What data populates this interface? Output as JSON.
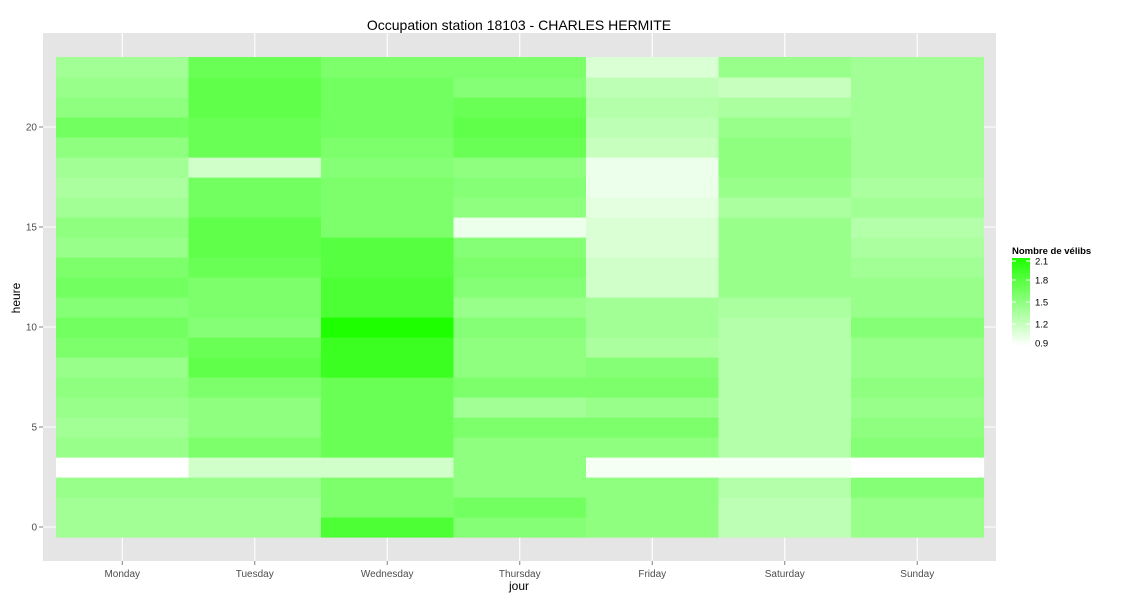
{
  "chart_data": {
    "type": "heatmap",
    "title": "Occupation station 18103 - CHARLES HERMITE",
    "xlabel": "jour",
    "ylabel": "heure",
    "categories": [
      "Monday",
      "Tuesday",
      "Wednesday",
      "Thursday",
      "Friday",
      "Saturday",
      "Sunday"
    ],
    "y": [
      0,
      1,
      2,
      3,
      4,
      5,
      6,
      7,
      8,
      9,
      10,
      11,
      12,
      13,
      14,
      15,
      16,
      17,
      18,
      19,
      20,
      21,
      22,
      23
    ],
    "y_ticks": [
      0,
      5,
      10,
      15,
      20
    ],
    "ylim": [
      -0.5,
      23.5
    ],
    "grid": true,
    "legend": {
      "title": "Nombre de vélibs",
      "position": "right",
      "min": 0.9,
      "max": 2.1,
      "breaks": [
        2.1,
        1.8,
        1.5,
        1.2,
        0.9
      ]
    },
    "colors": {
      "low": "#ffffff",
      "high": "#1eff00",
      "panel": "#e5e5e5",
      "grid": "#ffffff"
    },
    "values": [
      [
        1.4,
        1.4,
        1.85,
        1.55,
        1.5,
        1.25,
        1.45
      ],
      [
        1.4,
        1.4,
        1.6,
        1.65,
        1.5,
        1.25,
        1.45
      ],
      [
        1.45,
        1.45,
        1.6,
        1.5,
        1.5,
        1.3,
        1.55
      ],
      [
        0.9,
        1.15,
        1.15,
        1.5,
        0.95,
        0.95,
        0.9
      ],
      [
        1.45,
        1.6,
        1.7,
        1.5,
        1.5,
        1.3,
        1.55
      ],
      [
        1.4,
        1.5,
        1.7,
        1.6,
        1.6,
        1.3,
        1.5
      ],
      [
        1.45,
        1.5,
        1.7,
        1.4,
        1.45,
        1.3,
        1.45
      ],
      [
        1.5,
        1.6,
        1.7,
        1.6,
        1.6,
        1.3,
        1.5
      ],
      [
        1.45,
        1.75,
        1.95,
        1.5,
        1.55,
        1.3,
        1.45
      ],
      [
        1.6,
        1.7,
        1.95,
        1.5,
        1.35,
        1.3,
        1.45
      ],
      [
        1.65,
        1.55,
        2.1,
        1.55,
        1.4,
        1.3,
        1.55
      ],
      [
        1.55,
        1.6,
        1.85,
        1.45,
        1.4,
        1.35,
        1.45
      ],
      [
        1.65,
        1.6,
        1.85,
        1.55,
        1.15,
        1.45,
        1.45
      ],
      [
        1.6,
        1.7,
        1.8,
        1.6,
        1.15,
        1.45,
        1.4
      ],
      [
        1.45,
        1.75,
        1.8,
        1.55,
        1.1,
        1.45,
        1.35
      ],
      [
        1.5,
        1.75,
        1.6,
        1.0,
        1.1,
        1.45,
        1.3
      ],
      [
        1.4,
        1.65,
        1.6,
        1.5,
        1.05,
        1.35,
        1.4
      ],
      [
        1.35,
        1.65,
        1.6,
        1.55,
        1.0,
        1.45,
        1.35
      ],
      [
        1.4,
        1.15,
        1.55,
        1.5,
        1.0,
        1.5,
        1.4
      ],
      [
        1.5,
        1.7,
        1.6,
        1.7,
        1.2,
        1.5,
        1.4
      ],
      [
        1.65,
        1.7,
        1.65,
        1.75,
        1.25,
        1.45,
        1.4
      ],
      [
        1.5,
        1.75,
        1.65,
        1.7,
        1.3,
        1.35,
        1.4
      ],
      [
        1.45,
        1.75,
        1.65,
        1.55,
        1.25,
        1.2,
        1.4
      ],
      [
        1.4,
        1.7,
        1.6,
        1.6,
        1.1,
        1.45,
        1.4
      ]
    ]
  }
}
